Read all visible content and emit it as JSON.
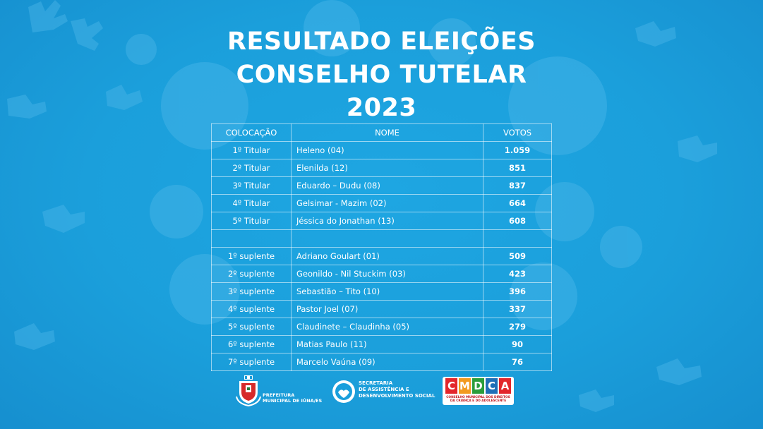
{
  "title": {
    "line1": "RESULTADO ELEIÇÕES",
    "line2": "CONSELHO TUTELAR",
    "line3": "2023"
  },
  "table": {
    "headers": [
      "COLOCAÇÃO",
      "NOME",
      "VOTOS"
    ],
    "rows": [
      {
        "pos": "1º Titular",
        "name": "Heleno (04)",
        "votes": "1.059"
      },
      {
        "pos": "2º Titular",
        "name": "Elenilda (12)",
        "votes": "851"
      },
      {
        "pos": "3º Titular",
        "name": "Eduardo – Dudu (08)",
        "votes": "837"
      },
      {
        "pos": "4º Titular",
        "name": "Gelsimar - Mazim (02)",
        "votes": "664"
      },
      {
        "pos": "5º Titular",
        "name": "Jéssica do Jonathan (13)",
        "votes": "608"
      },
      {
        "pos": "",
        "name": "",
        "votes": ""
      },
      {
        "pos": "1º suplente",
        "name": "Adriano Goulart (01)",
        "votes": "509"
      },
      {
        "pos": "2º suplente",
        "name": "Geonildo - Nil Stuckim (03)",
        "votes": "423"
      },
      {
        "pos": "3º suplente",
        "name": "Sebastião – Tito (10)",
        "votes": "396"
      },
      {
        "pos": "4º suplente",
        "name": "Pastor Joel (07)",
        "votes": "337"
      },
      {
        "pos": "5º suplente",
        "name": "Claudinete – Claudinha (05)",
        "votes": "279"
      },
      {
        "pos": "6º suplente",
        "name": "Matias Paulo (11)",
        "votes": "90"
      },
      {
        "pos": "7º suplente",
        "name": "Marcelo Vaúna (09)",
        "votes": "76"
      }
    ]
  },
  "logos": {
    "prefeitura": {
      "line1": "PREFEITURA",
      "line2": "MUNICIPAL DE IÚNA/ES"
    },
    "secretaria": {
      "line1": "SECRETARIA",
      "line2": "DE ASSISTÊNCIA E",
      "line3": "DESENVOLVIMENTO SOCIAL"
    },
    "cmdca": {
      "letters": [
        "C",
        "M",
        "D",
        "C",
        "A"
      ],
      "letter_colors": [
        "#e3262b",
        "#f29a1f",
        "#2a9d3a",
        "#1f6fb7",
        "#e3262b"
      ],
      "sub1": "CONSELHO MUNICIPAL DOS DIREITOS",
      "sub2": "DA CRIANÇA E DO ADOLESCENTE"
    }
  },
  "colors": {
    "background": "#1a9fdc",
    "text": "#ffffff",
    "decoration": "#4fb9ea"
  }
}
